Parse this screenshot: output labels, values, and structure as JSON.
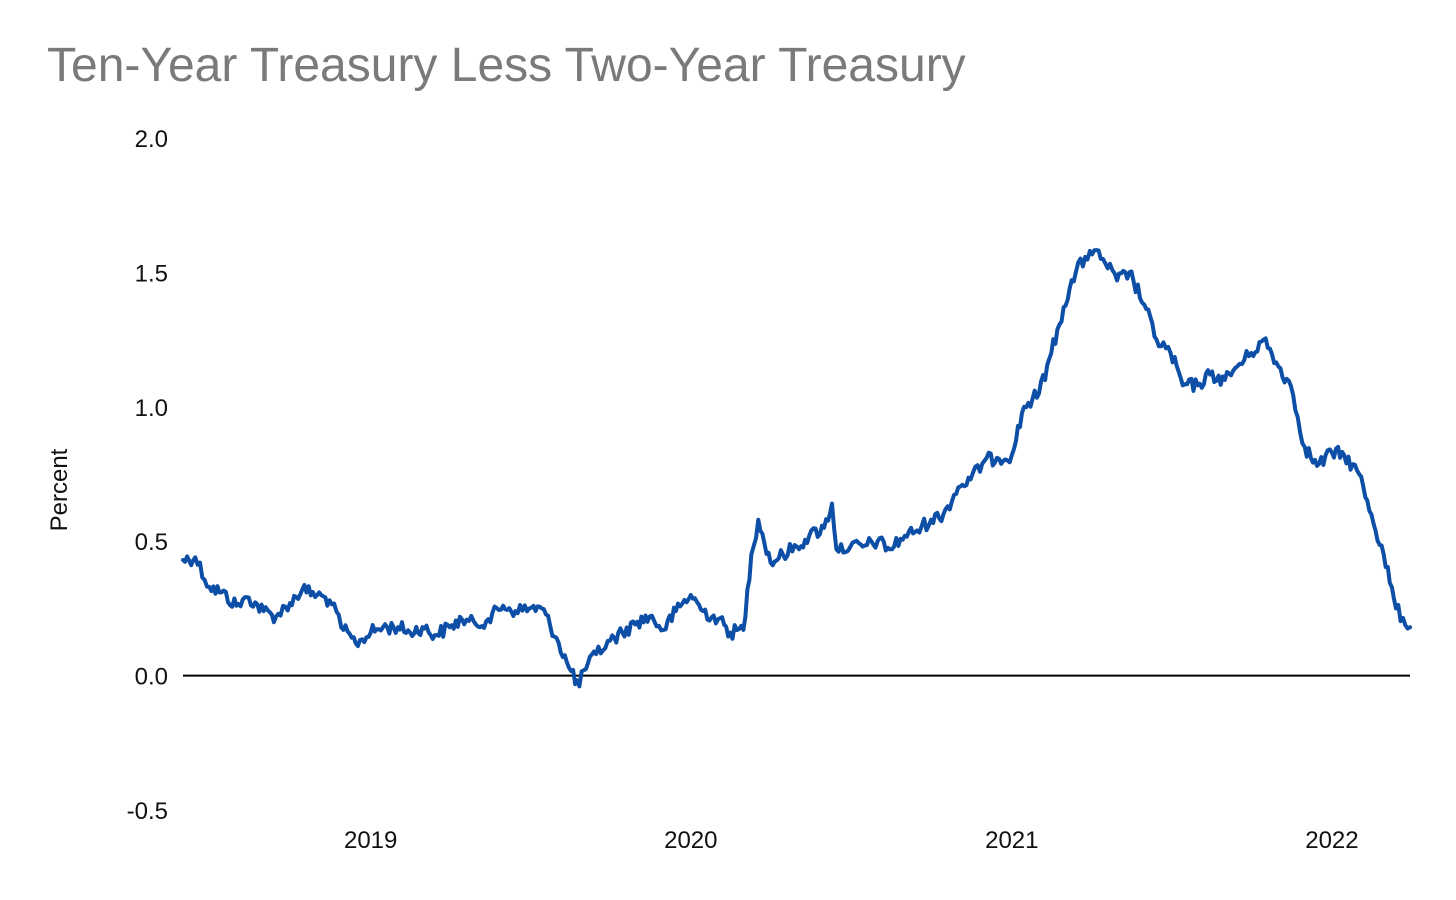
{
  "chart_data": {
    "type": "line",
    "title": "Ten-Year Treasury Less Two-Year Treasury",
    "ylabel": "Percent",
    "xlabel": "",
    "ylim": [
      -0.5,
      2.0
    ],
    "xlim": [
      "2018-06-01",
      "2022-03-31"
    ],
    "y_ticks": [
      "2.0",
      "1.5",
      "1.0",
      "0.5",
      "0.0",
      "-0.5"
    ],
    "y_tick_values": [
      2.0,
      1.5,
      1.0,
      0.5,
      0.0,
      -0.5
    ],
    "x_ticks": [
      "2019",
      "2020",
      "2021",
      "2022"
    ],
    "x_tick_dates": [
      "2019-01-01",
      "2020-01-01",
      "2021-01-01",
      "2022-01-01"
    ],
    "zero_line": true,
    "grid": false,
    "legend": "none",
    "series_color": "#0d4ea6",
    "series": [
      {
        "x": [
          "2018-06-01",
          "2018-06-15",
          "2018-07-01",
          "2018-07-15",
          "2018-08-01",
          "2018-08-15",
          "2018-09-01",
          "2018-09-15",
          "2018-10-01",
          "2018-10-15",
          "2018-11-01",
          "2018-11-15",
          "2018-12-01",
          "2018-12-15",
          "2019-01-01",
          "2019-01-15",
          "2019-02-01",
          "2019-02-15",
          "2019-03-01",
          "2019-03-15",
          "2019-04-01",
          "2019-04-15",
          "2019-05-01",
          "2019-05-15",
          "2019-06-01",
          "2019-06-15",
          "2019-07-01",
          "2019-07-15",
          "2019-08-01",
          "2019-08-15",
          "2019-08-27",
          "2019-09-01",
          "2019-09-15",
          "2019-10-01",
          "2019-10-15",
          "2019-11-01",
          "2019-11-15",
          "2019-12-01",
          "2019-12-15",
          "2020-01-01",
          "2020-01-15",
          "2020-02-01",
          "2020-02-15",
          "2020-03-01",
          "2020-03-10",
          "2020-03-18",
          "2020-04-01",
          "2020-04-15",
          "2020-05-01",
          "2020-05-15",
          "2020-06-01",
          "2020-06-10",
          "2020-06-15",
          "2020-07-01",
          "2020-07-15",
          "2020-08-01",
          "2020-08-15",
          "2020-09-01",
          "2020-09-15",
          "2020-10-01",
          "2020-10-15",
          "2020-11-01",
          "2020-11-15",
          "2020-12-01",
          "2020-12-15",
          "2021-01-01",
          "2021-01-15",
          "2021-02-01",
          "2021-02-15",
          "2021-03-01",
          "2021-03-15",
          "2021-03-31",
          "2021-04-15",
          "2021-05-01",
          "2021-05-15",
          "2021-06-01",
          "2021-06-15",
          "2021-07-01",
          "2021-07-15",
          "2021-08-01",
          "2021-08-15",
          "2021-09-01",
          "2021-09-15",
          "2021-10-01",
          "2021-10-15",
          "2021-11-01",
          "2021-11-15",
          "2021-12-01",
          "2021-12-15",
          "2022-01-01",
          "2022-01-15",
          "2022-02-01",
          "2022-02-15",
          "2022-03-01",
          "2022-03-15",
          "2022-03-31"
        ],
        "y": [
          0.43,
          0.44,
          0.33,
          0.31,
          0.26,
          0.29,
          0.24,
          0.22,
          0.27,
          0.32,
          0.3,
          0.28,
          0.17,
          0.12,
          0.16,
          0.18,
          0.18,
          0.16,
          0.18,
          0.15,
          0.18,
          0.21,
          0.19,
          0.21,
          0.26,
          0.24,
          0.25,
          0.25,
          0.14,
          0.03,
          -0.04,
          0.02,
          0.08,
          0.13,
          0.16,
          0.2,
          0.22,
          0.17,
          0.24,
          0.3,
          0.24,
          0.21,
          0.16,
          0.17,
          0.45,
          0.58,
          0.42,
          0.45,
          0.48,
          0.52,
          0.55,
          0.64,
          0.47,
          0.48,
          0.48,
          0.5,
          0.47,
          0.52,
          0.54,
          0.58,
          0.6,
          0.7,
          0.73,
          0.8,
          0.81,
          0.82,
          1.0,
          1.05,
          1.2,
          1.37,
          1.5,
          1.58,
          1.55,
          1.47,
          1.5,
          1.38,
          1.25,
          1.2,
          1.08,
          1.08,
          1.12,
          1.1,
          1.15,
          1.2,
          1.25,
          1.15,
          1.08,
          0.85,
          0.78,
          0.83,
          0.82,
          0.75,
          0.6,
          0.45,
          0.25,
          0.18
        ]
      }
    ]
  }
}
